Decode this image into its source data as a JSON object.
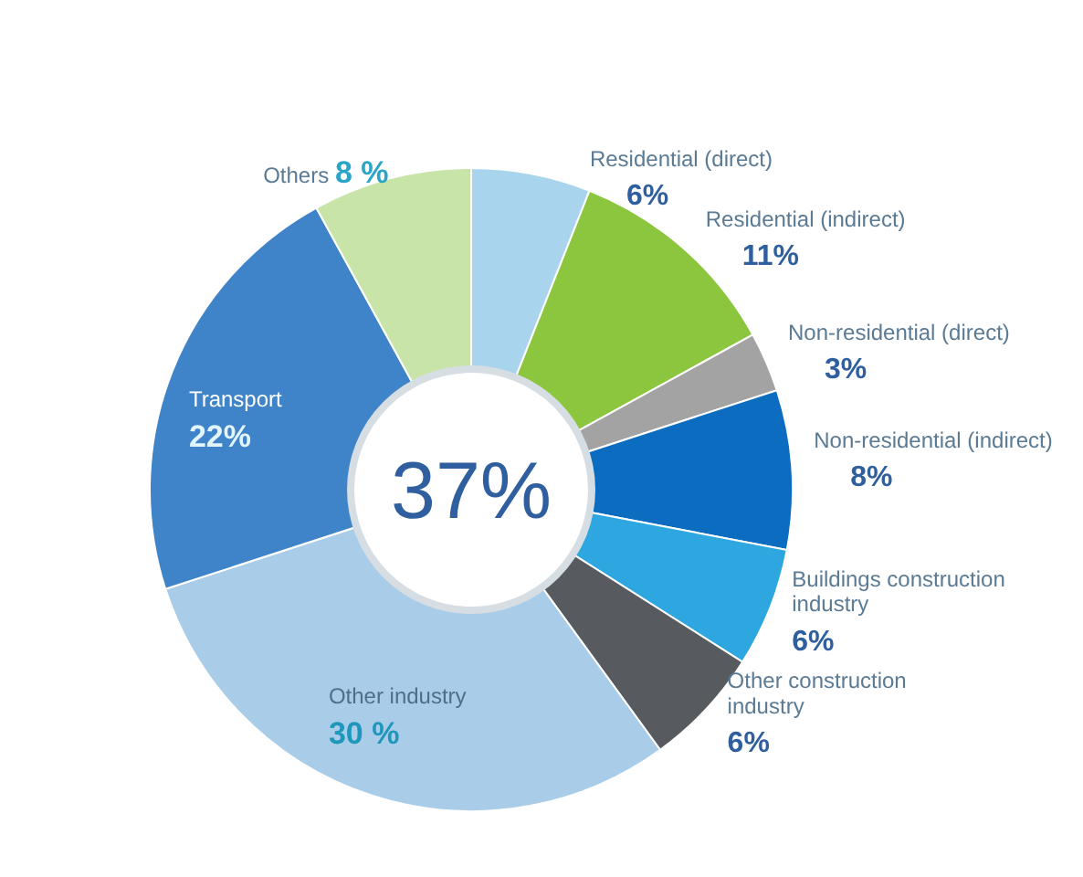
{
  "chart_data": {
    "type": "donut",
    "categories": [
      "Residential (direct)",
      "Residential (indirect)",
      "Non-residential (direct)",
      "Non-residential (indirect)",
      "Buildings construction industry",
      "Other construction industry",
      "Other industry",
      "Transport",
      "Others"
    ],
    "values": [
      6,
      11,
      3,
      8,
      6,
      6,
      30,
      22,
      8
    ],
    "value_labels": [
      "6%",
      "11%",
      "3%",
      "8%",
      "6%",
      "6%",
      "30 %",
      "22%",
      "8 %"
    ],
    "colors": [
      "#a9d4ee",
      "#8cc63f",
      "#a3a3a3",
      "#0b6cc0",
      "#2ea7e0",
      "#575b60",
      "#a9cde9",
      "#3f84c9",
      "#c8e4a8"
    ],
    "annotations": [
      "37%"
    ]
  }
}
